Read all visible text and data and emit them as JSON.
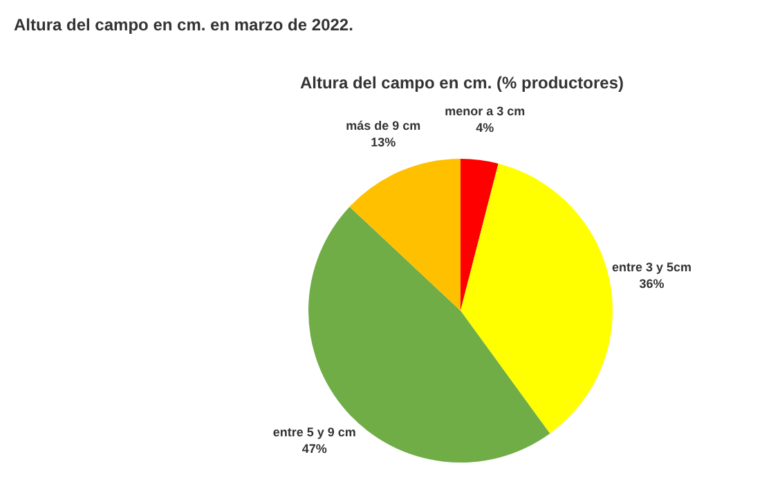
{
  "chart_data": {
    "type": "pie",
    "title": "Altura del campo en cm. (% productores)",
    "annotations": [
      "Altura del campo en cm. en marzo de 2022."
    ],
    "categories": [
      "menor a 3 cm",
      "entre 3 y 5cm",
      "entre 5 y 9 cm",
      "más de 9 cm"
    ],
    "values": [
      4,
      36,
      47,
      13
    ],
    "colors": [
      "#ff0000",
      "#ffff00",
      "#70ad47",
      "#ffc000"
    ],
    "value_labels": [
      "4%",
      "36%",
      "47%",
      "13%"
    ]
  }
}
